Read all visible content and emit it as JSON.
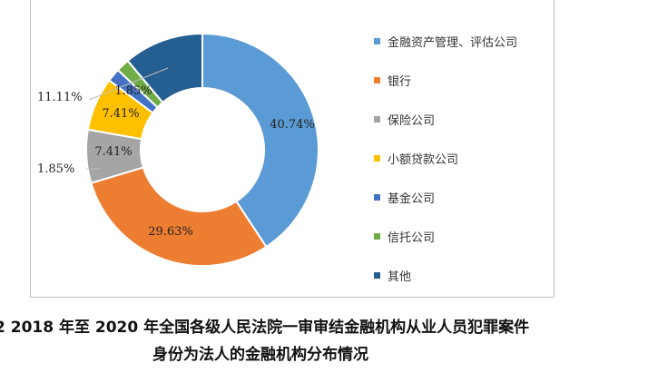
{
  "chart_data": {
    "type": "pie",
    "donut": true,
    "categories": [
      "金融资产管理、评估公司",
      "银行",
      "保险公司",
      "小额贷款公司",
      "基金公司",
      "信托公司",
      "其他"
    ],
    "values": [
      40.74,
      29.63,
      7.41,
      7.41,
      1.85,
      1.85,
      11.11
    ],
    "value_labels": [
      "40.74%",
      "29.63%",
      "7.41%",
      "7.41%",
      "1.85%",
      "1.85%",
      "11.11%"
    ],
    "colors": [
      "#5b9bd5",
      "#ed7d31",
      "#a5a5a5",
      "#ffc000",
      "#4472c4",
      "#70ad47",
      "#255e91"
    ],
    "legend_position": "right",
    "title": "",
    "caption_line1": "2 2018 年至 2020 年全国各级人民法院一审审结金融机构从业人员犯罪案件",
    "caption_line2": "身份为法人的金融机构分布情况"
  }
}
